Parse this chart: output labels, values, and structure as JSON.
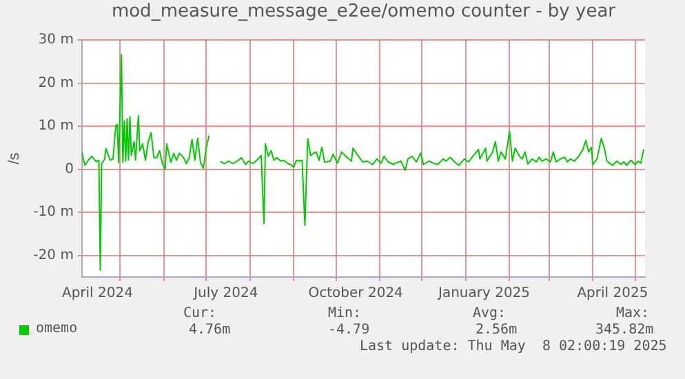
{
  "chart_data": {
    "type": "line",
    "title": "mod_measure_message_e2ee/omemo counter - by year",
    "ylabel": "/s",
    "xlim": [
      "2024-04-04",
      "2025-05-08"
    ],
    "xticks": [
      {
        "value": "2024-04-15",
        "label": "April 2024"
      },
      {
        "value": "2024-07-15",
        "label": "July 2024"
      },
      {
        "value": "2024-10-15",
        "label": "October 2024"
      },
      {
        "value": "2025-01-14",
        "label": "January 2025"
      },
      {
        "value": "2025-04-15",
        "label": "April 2025"
      },
      {
        "value": "2024-05-01",
        "label": null
      },
      {
        "value": "2024-06-01",
        "label": null
      },
      {
        "value": "2024-07-01",
        "label": null
      },
      {
        "value": "2024-08-01",
        "label": null
      },
      {
        "value": "2024-09-01",
        "label": null
      },
      {
        "value": "2024-10-01",
        "label": null
      },
      {
        "value": "2024-11-01",
        "label": null
      },
      {
        "value": "2024-12-01",
        "label": null
      },
      {
        "value": "2025-01-01",
        "label": null
      },
      {
        "value": "2025-02-01",
        "label": null
      },
      {
        "value": "2025-03-01",
        "label": null
      },
      {
        "value": "2025-04-01",
        "label": null
      },
      {
        "value": "2025-05-01",
        "label": null
      }
    ],
    "ylim": [
      -25,
      30
    ],
    "yticks": [
      {
        "value": -20,
        "label": "-20 m"
      },
      {
        "value": -10,
        "label": "-10 m"
      },
      0,
      {
        "value": 10,
        "label": "10 m"
      },
      {
        "value": 20,
        "label": "20 m"
      },
      {
        "value": 30,
        "label": "30 m"
      }
    ],
    "grid": true,
    "legend": "bottom left",
    "marker": "none",
    "line_style": "solid",
    "annotations": [
      "Cur:",
      "Min:",
      "Avg:",
      "Max:",
      "4.76m",
      "-4.79",
      "2.56m",
      "345.82m",
      "Last update: Thu May  8 02:00:19 2025"
    ],
    "x": [
      "2024-04-04",
      "2024-04-06",
      "2024-04-09",
      "2024-04-11",
      "2024-04-14",
      "2024-04-16",
      "2024-04-17",
      "2024-04-18",
      "2024-04-20",
      "2024-04-21",
      "2024-04-24",
      "2024-04-26",
      "2024-04-28",
      "2024-04-29",
      "2024-04-30",
      "2024-05-02",
      "2024-05-03",
      "2024-05-04",
      "2024-05-05",
      "2024-05-06",
      "2024-05-07",
      "2024-05-08",
      "2024-05-09",
      "2024-05-11",
      "2024-05-12",
      "2024-05-14",
      "2024-05-15",
      "2024-05-17",
      "2024-05-19",
      "2024-05-21",
      "2024-05-23",
      "2024-05-25",
      "2024-05-27",
      "2024-05-29",
      "2024-05-31",
      "2024-06-02",
      "2024-06-03",
      "2024-06-06",
      "2024-06-08",
      "2024-06-10",
      "2024-06-12",
      "2024-06-15",
      "2024-06-17",
      "2024-06-19",
      "2024-06-21",
      "2024-06-23",
      "2024-06-25",
      "2024-06-27",
      "2024-06-29",
      "2024-07-01",
      "2024-07-03",
      "2024-07-07",
      "2024-07-11",
      "2024-07-14",
      "2024-07-17",
      "2024-07-20",
      "2024-07-24",
      "2024-07-26",
      "2024-07-29",
      "2024-07-31",
      "2024-08-03",
      "2024-08-06",
      "2024-08-09",
      "2024-08-11",
      "2024-08-12",
      "2024-08-14",
      "2024-08-16",
      "2024-08-18",
      "2024-08-20",
      "2024-08-23",
      "2024-08-25",
      "2024-08-28",
      "2024-08-30",
      "2024-09-01",
      "2024-09-03",
      "2024-09-05",
      "2024-09-07",
      "2024-09-09",
      "2024-09-11",
      "2024-09-13",
      "2024-09-15",
      "2024-09-17",
      "2024-09-19",
      "2024-09-21",
      "2024-09-23",
      "2024-09-27",
      "2024-09-29",
      "2024-10-02",
      "2024-10-05",
      "2024-10-08",
      "2024-10-12",
      "2024-10-13",
      "2024-10-17",
      "2024-10-20",
      "2024-10-23",
      "2024-10-27",
      "2024-10-30",
      "2024-11-02",
      "2024-11-04",
      "2024-11-07",
      "2024-11-11",
      "2024-11-12",
      "2024-11-16",
      "2024-11-19",
      "2024-11-21",
      "2024-11-24",
      "2024-11-27",
      "2024-11-30",
      "2024-12-02",
      "2024-12-06",
      "2024-12-09",
      "2024-12-12",
      "2024-12-16",
      "2024-12-18",
      "2024-12-21",
      "2024-12-24",
      "2024-12-27",
      "2024-12-31",
      "2025-01-03",
      "2025-01-06",
      "2025-01-10",
      "2025-01-11",
      "2025-01-15",
      "2025-01-16",
      "2025-01-20",
      "2025-01-22",
      "2025-01-24",
      "2025-01-26",
      "2025-01-29",
      "2025-02-01",
      "2025-02-03",
      "2025-02-05",
      "2025-02-08",
      "2025-02-10",
      "2025-02-12",
      "2025-02-14",
      "2025-02-17",
      "2025-02-20",
      "2025-02-22",
      "2025-02-24",
      "2025-02-27",
      "2025-03-02",
      "2025-03-04",
      "2025-03-06",
      "2025-03-09",
      "2025-03-12",
      "2025-03-14",
      "2025-03-16",
      "2025-03-19",
      "2025-03-22",
      "2025-03-25",
      "2025-03-27",
      "2025-03-29",
      "2025-03-31",
      "2025-04-01",
      "2025-04-04",
      "2025-04-07",
      "2025-04-09",
      "2025-04-11",
      "2025-04-13",
      "2025-04-15",
      "2025-04-18",
      "2025-04-21",
      "2025-04-23",
      "2025-04-25",
      "2025-04-28",
      "2025-05-01",
      "2025-05-03",
      "2025-05-05",
      "2025-05-07"
    ],
    "series": [
      {
        "name": "omemo",
        "color": "#00cc00",
        "values": [
          4.0,
          0.9,
          2.3,
          3.0,
          1.8,
          2.1,
          -23.4,
          1.3,
          2.3,
          4.8,
          2.1,
          2.4,
          10.1,
          10.4,
          1.6,
          26.6,
          1.6,
          11.2,
          1.9,
          11.7,
          2.1,
          12.2,
          3.2,
          6.4,
          2.1,
          12.4,
          4.3,
          5.9,
          2.1,
          6.4,
          8.5,
          2.7,
          2.7,
          4.3,
          1.3,
          0,
          5.9,
          1.6,
          3.7,
          2.1,
          3.7,
          2.7,
          1.3,
          2.7,
          6.9,
          2.1,
          7.2,
          1.6,
          0.2,
          4.8,
          7.8,
          null,
          1.8,
          1.3,
          1.9,
          1.3,
          2.1,
          2.7,
          1.1,
          1.9,
          1.3,
          2.1,
          3.2,
          -12.6,
          5.9,
          3.0,
          4.3,
          2.1,
          2.7,
          1.9,
          2.1,
          1.3,
          1.1,
          0.5,
          2.1,
          1.9,
          2.1,
          -13.0,
          7.1,
          3.2,
          3.7,
          4.0,
          2.1,
          5.1,
          1.6,
          1.9,
          3.5,
          1.4,
          4.0,
          3.0,
          1.9,
          4.9,
          3.0,
          1.7,
          1.9,
          1.1,
          2.4,
          1.4,
          3.0,
          1.7,
          1.1,
          1.4,
          1.9,
          -0.2,
          2.4,
          3.0,
          1.7,
          3.8,
          1.1,
          1.9,
          1.4,
          1.1,
          2.4,
          1.9,
          2.8,
          1.7,
          0.9,
          2.4,
          1.7,
          3.0,
          4.6,
          2.4,
          4.9,
          1.9,
          4.0,
          6.4,
          1.9,
          4.0,
          2.4,
          8.8,
          1.9,
          4.9,
          3.0,
          2.4,
          4.0,
          1.2,
          2.4,
          1.7,
          2.8,
          1.9,
          2.4,
          1.7,
          4.0,
          1.7,
          2.4,
          2.8,
          1.7,
          2.4,
          1.9,
          3.0,
          4.6,
          6.7,
          4.0,
          5.1,
          1.1,
          2.4,
          7.2,
          5.1,
          1.9,
          1.4,
          0.9,
          1.9,
          1.1,
          1.7,
          0.9,
          2.1,
          1.1,
          1.9,
          1.4,
          4.6
        ]
      }
    ]
  }
}
